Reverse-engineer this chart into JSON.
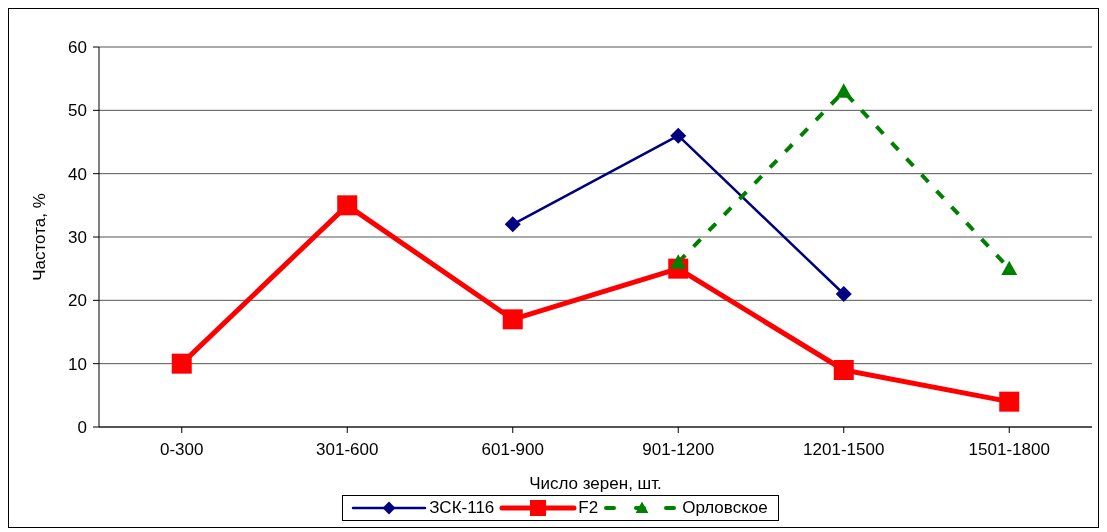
{
  "chart_data": {
    "type": "line",
    "xlabel": "Число зерен, шт.",
    "ylabel": "Частота, %",
    "categories": [
      "0-300",
      "301-600",
      "601-900",
      "901-1200",
      "1201-1500",
      "1501-1800"
    ],
    "series": [
      {
        "name": "ЗСК-116",
        "color": "#000080",
        "marker": "diamond",
        "line_style": "solid",
        "values": [
          null,
          null,
          32,
          46,
          21,
          null
        ]
      },
      {
        "name": "F2",
        "color": "#ff0000",
        "marker": "square",
        "line_style": "solid",
        "values": [
          10,
          35,
          17,
          25,
          9,
          4
        ]
      },
      {
        "name": "Орловское",
        "color": "#008000",
        "marker": "triangle",
        "line_style": "dashed",
        "values": [
          null,
          null,
          null,
          26,
          53,
          25
        ]
      }
    ],
    "ylim": [
      0,
      60
    ],
    "yticks": [
      0,
      10,
      20,
      30,
      40,
      50,
      60
    ],
    "grid": "y",
    "legend": "bottom"
  }
}
